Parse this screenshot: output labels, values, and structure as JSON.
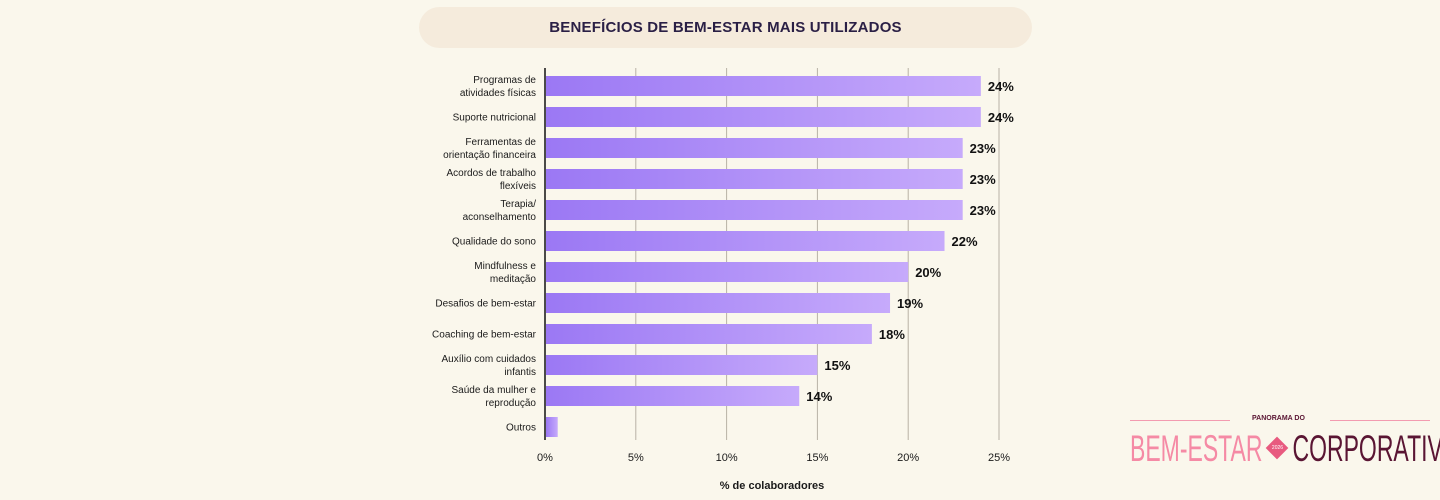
{
  "chart_data": {
    "type": "bar",
    "orientation": "horizontal",
    "title": "BENEFÍCIOS DE BEM-ESTAR MAIS UTILIZADOS",
    "xlabel": "% de colaboradores",
    "ylabel": "",
    "xlim": [
      0,
      25
    ],
    "xticks": [
      "0%",
      "5%",
      "10%",
      "15%",
      "20%",
      "25%"
    ],
    "xtick_values": [
      0,
      5,
      10,
      15,
      20,
      25
    ],
    "grid": "vertical",
    "categories": [
      [
        "Programas de",
        "atividades físicas"
      ],
      [
        "Suporte nutricional"
      ],
      [
        "Ferramentas de",
        "orientação financeira"
      ],
      [
        "Acordos de trabalho",
        "flexíveis"
      ],
      [
        "Terapia/",
        "aconselhamento"
      ],
      [
        "Qualidade do sono"
      ],
      [
        "Mindfulness e",
        "meditação"
      ],
      [
        "Desafios de bem-estar"
      ],
      [
        "Coaching de bem-estar"
      ],
      [
        "Auxílio com cuidados",
        "infantis"
      ],
      [
        "Saúde da mulher e",
        "reprodução"
      ],
      [
        "Outros"
      ]
    ],
    "values": [
      24,
      24,
      23,
      23,
      23,
      22,
      20,
      19,
      18,
      15,
      14,
      0.7
    ],
    "data_labels": [
      "24%",
      "24%",
      "23%",
      "23%",
      "23%",
      "22%",
      "20%",
      "19%",
      "18%",
      "15%",
      "14%",
      ""
    ],
    "colors": {
      "bar_start": "#9b78f4",
      "bar_end": "#c6aafb",
      "grid": "#b8b2a6",
      "axis": "#111111",
      "text": "#1a1a1a"
    }
  },
  "logo": {
    "top": "PANORAMA DO",
    "left": "BEM-ESTAR",
    "year": "2026",
    "right": "CORPORATIVO"
  }
}
